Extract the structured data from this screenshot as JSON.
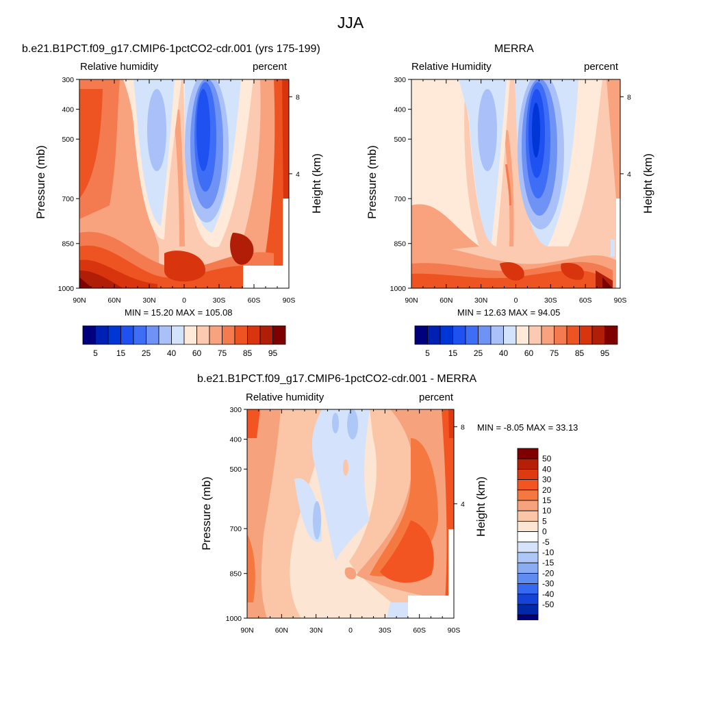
{
  "figure": {
    "title": "JJA"
  },
  "panels": [
    {
      "id": "model",
      "title": "b.e21.B1PCT.f09_g17.CMIP6-1pctCO2-cdr.001 (yrs 175-199)",
      "left_label": "Relative humidity",
      "right_label": "percent",
      "ylabel": "Pressure (mb)",
      "ylabel2": "Height (km)",
      "stats_text": "MIN =  15.20  MAX = 105.08"
    },
    {
      "id": "obs",
      "title": "MERRA",
      "left_label": "Relative Humidity",
      "right_label": "percent",
      "ylabel": "Pressure (mb)",
      "ylabel2": "Height (km)",
      "stats_text": "MIN =  12.63  MAX =  94.05"
    },
    {
      "id": "diff",
      "title": "b.e21.B1PCT.f09_g17.CMIP6-1pctCO2-cdr.001 - MERRA",
      "left_label": "Relative humidity",
      "right_label": "percent",
      "ylabel": "Pressure (mb)",
      "ylabel2": "Height (km)",
      "stats_text": "MIN =  -8.05  MAX =  33.13"
    }
  ],
  "colors": {
    "rh_scale": [
      "#00007f",
      "#0020b4",
      "#0035d6",
      "#1f50f0",
      "#3e6ef5",
      "#6f92f5",
      "#a9c0f8",
      "#d3e3fb",
      "#ffe9d9",
      "#fccab0",
      "#f8a27e",
      "#f47b50",
      "#ee5322",
      "#d8340e",
      "#b11e08",
      "#7f0000"
    ],
    "diff_scale": [
      "#7f0000",
      "#b61f06",
      "#dd3a0f",
      "#f25522",
      "#f47840",
      "#f6a27c",
      "#fac6a7",
      "#fde5d4",
      "#ffffff",
      "#d4e3fb",
      "#adc7f7",
      "#8aacf2",
      "#5f8cf0",
      "#3669f2",
      "#1443d8",
      "#0327a9",
      "#00007f"
    ]
  },
  "chart_data": [
    {
      "type": "contour",
      "panel": "model",
      "x_ticks": [
        "90N",
        "60N",
        "30N",
        "0",
        "30S",
        "60S",
        "90S"
      ],
      "y_ticks": [
        "300",
        "400",
        "500",
        "700",
        "850",
        "1000"
      ],
      "y2_ticks": [
        "8",
        "4"
      ],
      "colorbar_labels": [
        "5",
        "15",
        "25",
        "40",
        "60",
        "75",
        "85",
        "95"
      ],
      "min": 15.2,
      "max": 105.08
    },
    {
      "type": "contour",
      "panel": "obs",
      "x_ticks": [
        "90N",
        "60N",
        "30N",
        "0",
        "30S",
        "60S",
        "90S"
      ],
      "y_ticks": [
        "300",
        "400",
        "500",
        "700",
        "850",
        "1000"
      ],
      "y2_ticks": [
        "8",
        "4"
      ],
      "colorbar_labels": [
        "5",
        "15",
        "25",
        "40",
        "60",
        "75",
        "85",
        "95"
      ],
      "min": 12.63,
      "max": 94.05
    },
    {
      "type": "contour",
      "panel": "diff",
      "x_ticks": [
        "90N",
        "60N",
        "30N",
        "0",
        "30S",
        "60S",
        "90S"
      ],
      "y_ticks": [
        "300",
        "400",
        "500",
        "700",
        "850",
        "1000"
      ],
      "y2_ticks": [
        "8",
        "4"
      ],
      "colorbar_labels": [
        "50",
        "40",
        "30",
        "20",
        "15",
        "10",
        "5",
        "0",
        "-5",
        "-10",
        "-15",
        "-20",
        "-30",
        "-40",
        "-50"
      ],
      "min": -8.05,
      "max": 33.13
    }
  ]
}
